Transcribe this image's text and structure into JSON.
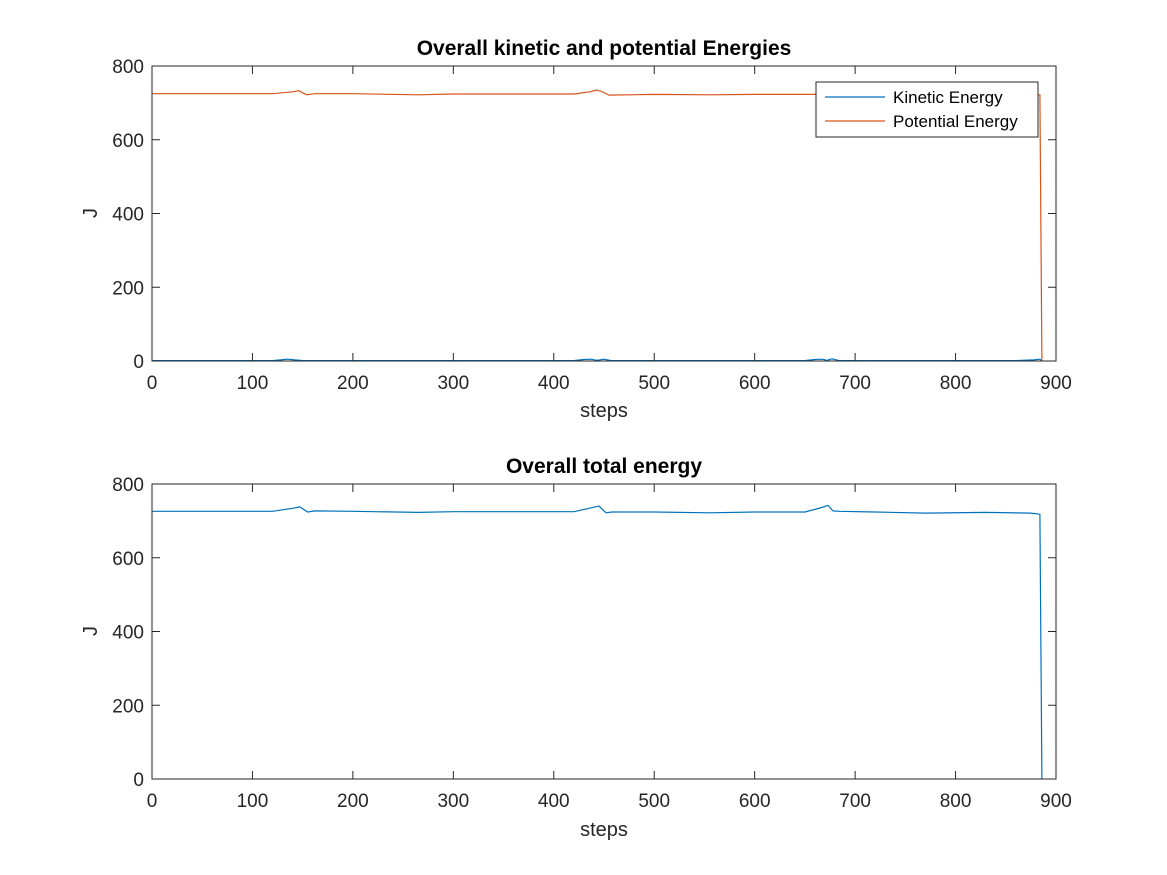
{
  "chart_data": [
    {
      "type": "line",
      "title": "Overall kinetic and potential Energies",
      "xlabel": "steps",
      "ylabel": "J",
      "xlim": [
        0,
        900
      ],
      "ylim": [
        0,
        800
      ],
      "xticks": [
        0,
        100,
        200,
        300,
        400,
        500,
        600,
        700,
        800,
        900
      ],
      "yticks": [
        0,
        200,
        400,
        600,
        800
      ],
      "grid": false,
      "legend_position": "top-right",
      "series": [
        {
          "name": "Kinetic Energy",
          "color": "#0072BD",
          "x": [
            0,
            120,
            128,
            135,
            142,
            150,
            300,
            420,
            430,
            437,
            443,
            450,
            457,
            600,
            650,
            660,
            667,
            672,
            677,
            684,
            860,
            878,
            884,
            886
          ],
          "y": [
            1,
            1,
            3,
            5,
            3,
            1,
            1,
            1,
            4,
            5,
            2,
            5,
            1,
            1,
            1,
            4,
            5,
            2,
            6,
            1,
            1,
            3,
            5,
            0
          ]
        },
        {
          "name": "Potential Energy",
          "color": "#D95319",
          "x": [
            0,
            120,
            140,
            146,
            154,
            162,
            200,
            265,
            300,
            420,
            436,
            443,
            450,
            455,
            500,
            555,
            600,
            660,
            668,
            677,
            685,
            720,
            770,
            830,
            884,
            886
          ],
          "y": [
            725,
            725,
            730,
            733,
            722,
            725,
            725,
            722,
            724,
            724,
            730,
            735,
            728,
            721,
            723,
            722,
            723,
            723,
            728,
            731,
            723,
            721,
            722,
            722,
            722,
            0
          ]
        }
      ]
    },
    {
      "type": "line",
      "title": "Overall total energy",
      "xlabel": "steps",
      "ylabel": "J",
      "xlim": [
        0,
        900
      ],
      "ylim": [
        0,
        800
      ],
      "xticks": [
        0,
        100,
        200,
        300,
        400,
        500,
        600,
        700,
        800,
        900
      ],
      "yticks": [
        0,
        200,
        400,
        600,
        800
      ],
      "grid": false,
      "series": [
        {
          "color": "#0072BD",
          "x": [
            0,
            120,
            140,
            147,
            155,
            162,
            200,
            265,
            300,
            420,
            435,
            445,
            452,
            458,
            500,
            555,
            600,
            650,
            665,
            673,
            678,
            684,
            720,
            770,
            830,
            875,
            884,
            886
          ],
          "y": [
            726,
            726,
            734,
            738,
            724,
            727,
            726,
            723,
            725,
            725,
            734,
            740,
            722,
            724,
            724,
            722,
            724,
            724,
            735,
            742,
            727,
            726,
            724,
            721,
            723,
            721,
            718,
            0
          ]
        }
      ]
    }
  ]
}
